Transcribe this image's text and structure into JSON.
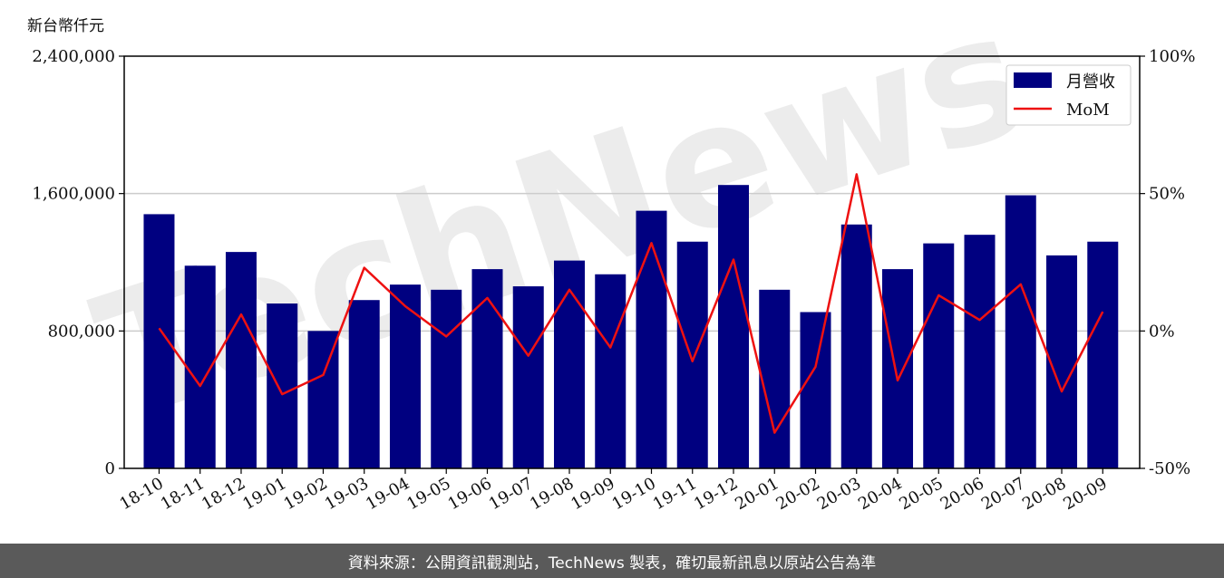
{
  "chart_data": {
    "type": "bar",
    "y_unit_label": "新台幣仟元",
    "categories": [
      "18-10",
      "18-11",
      "18-12",
      "19-01",
      "19-02",
      "19-03",
      "19-04",
      "19-05",
      "19-06",
      "19-07",
      "19-08",
      "19-09",
      "19-10",
      "19-11",
      "19-12",
      "20-01",
      "20-02",
      "20-03",
      "20-04",
      "20-05",
      "20-06",
      "20-07",
      "20-08",
      "20-09"
    ],
    "series": [
      {
        "name": "月營收",
        "type": "bar",
        "axis": "left",
        "color": "#000080",
        "values": [
          1480000,
          1180000,
          1260000,
          960000,
          800000,
          980000,
          1070000,
          1040000,
          1160000,
          1060000,
          1210000,
          1130000,
          1500000,
          1320000,
          1650000,
          1040000,
          910000,
          1420000,
          1160000,
          1310000,
          1360000,
          1590000,
          1240000,
          1320000
        ]
      },
      {
        "name": "MoM",
        "type": "line",
        "axis": "right",
        "color": "#ee1111",
        "values": [
          1,
          -20,
          6,
          -23,
          -16,
          23,
          9,
          -2,
          12,
          -9,
          15,
          -6,
          32,
          -11,
          26,
          -37,
          -13,
          57,
          -18,
          13,
          4,
          17,
          -22,
          7
        ]
      }
    ],
    "y_left": {
      "min": 0,
      "max": 2400000,
      "ticks": [
        "0",
        "800,000",
        "1,600,000",
        "2,400,000"
      ]
    },
    "y_right": {
      "min": -50,
      "max": 100,
      "ticks": [
        "-50%",
        "0%",
        "50%",
        "100%"
      ]
    },
    "grid": "horizontal",
    "legend_position": "top-right",
    "watermark": "TechNews"
  },
  "footer": {
    "text": "資料來源：公開資訊觀測站，TechNews 製表，確切最新訊息以原站公告為準"
  }
}
